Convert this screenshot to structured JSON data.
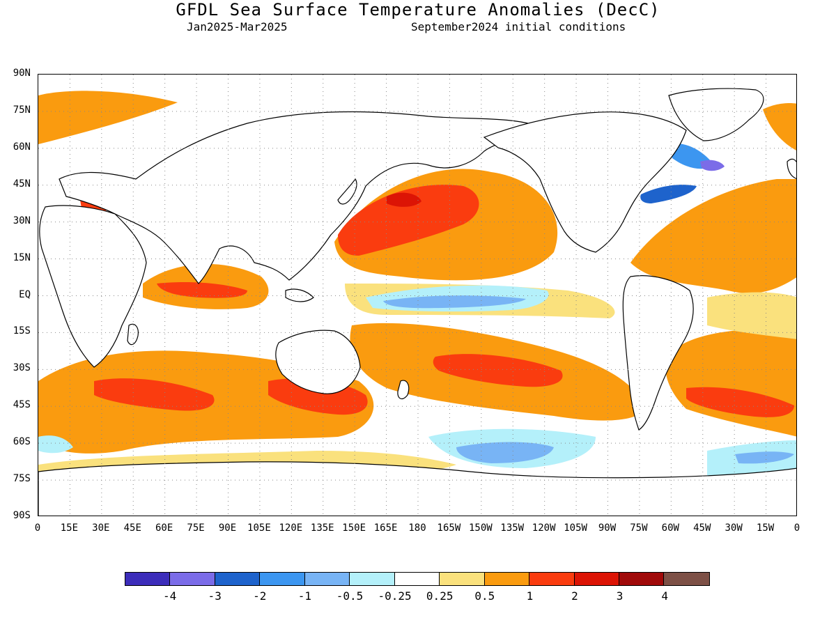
{
  "title": "GFDL Sea Surface Temperature Anomalies (DecC)",
  "subtitle_left": "Jan2025-Mar2025",
  "subtitle_right": "September2024 initial conditions",
  "map": {
    "lat_labels": [
      "90N",
      "75N",
      "60N",
      "45N",
      "30N",
      "15N",
      "EQ",
      "15S",
      "30S",
      "45S",
      "60S",
      "75S",
      "90S"
    ],
    "lon_labels": [
      "0",
      "15E",
      "30E",
      "45E",
      "60E",
      "75E",
      "90E",
      "105E",
      "120E",
      "135E",
      "150E",
      "165E",
      "180",
      "165W",
      "150W",
      "135W",
      "120W",
      "105W",
      "90W",
      "75W",
      "60W",
      "45W",
      "30W",
      "15W",
      "0"
    ],
    "land_color": "#ffffff",
    "coastline_color": "#000000",
    "grid_style": "dotted"
  },
  "colorbar": {
    "colors": [
      "#3c2dba",
      "#7b6ce8",
      "#1e63cc",
      "#3c96f0",
      "#78b4f5",
      "#b4f0fa",
      "#ffffff",
      "#fae17d",
      "#fa9b0f",
      "#fa3c0f",
      "#dc1405",
      "#a00a0a",
      "#7d5046"
    ],
    "labels": [
      "-4",
      "-3",
      "-2",
      "-1",
      "-0.5",
      "-0.25",
      "0.25",
      "0.5",
      "1",
      "2",
      "3",
      "4"
    ]
  }
}
